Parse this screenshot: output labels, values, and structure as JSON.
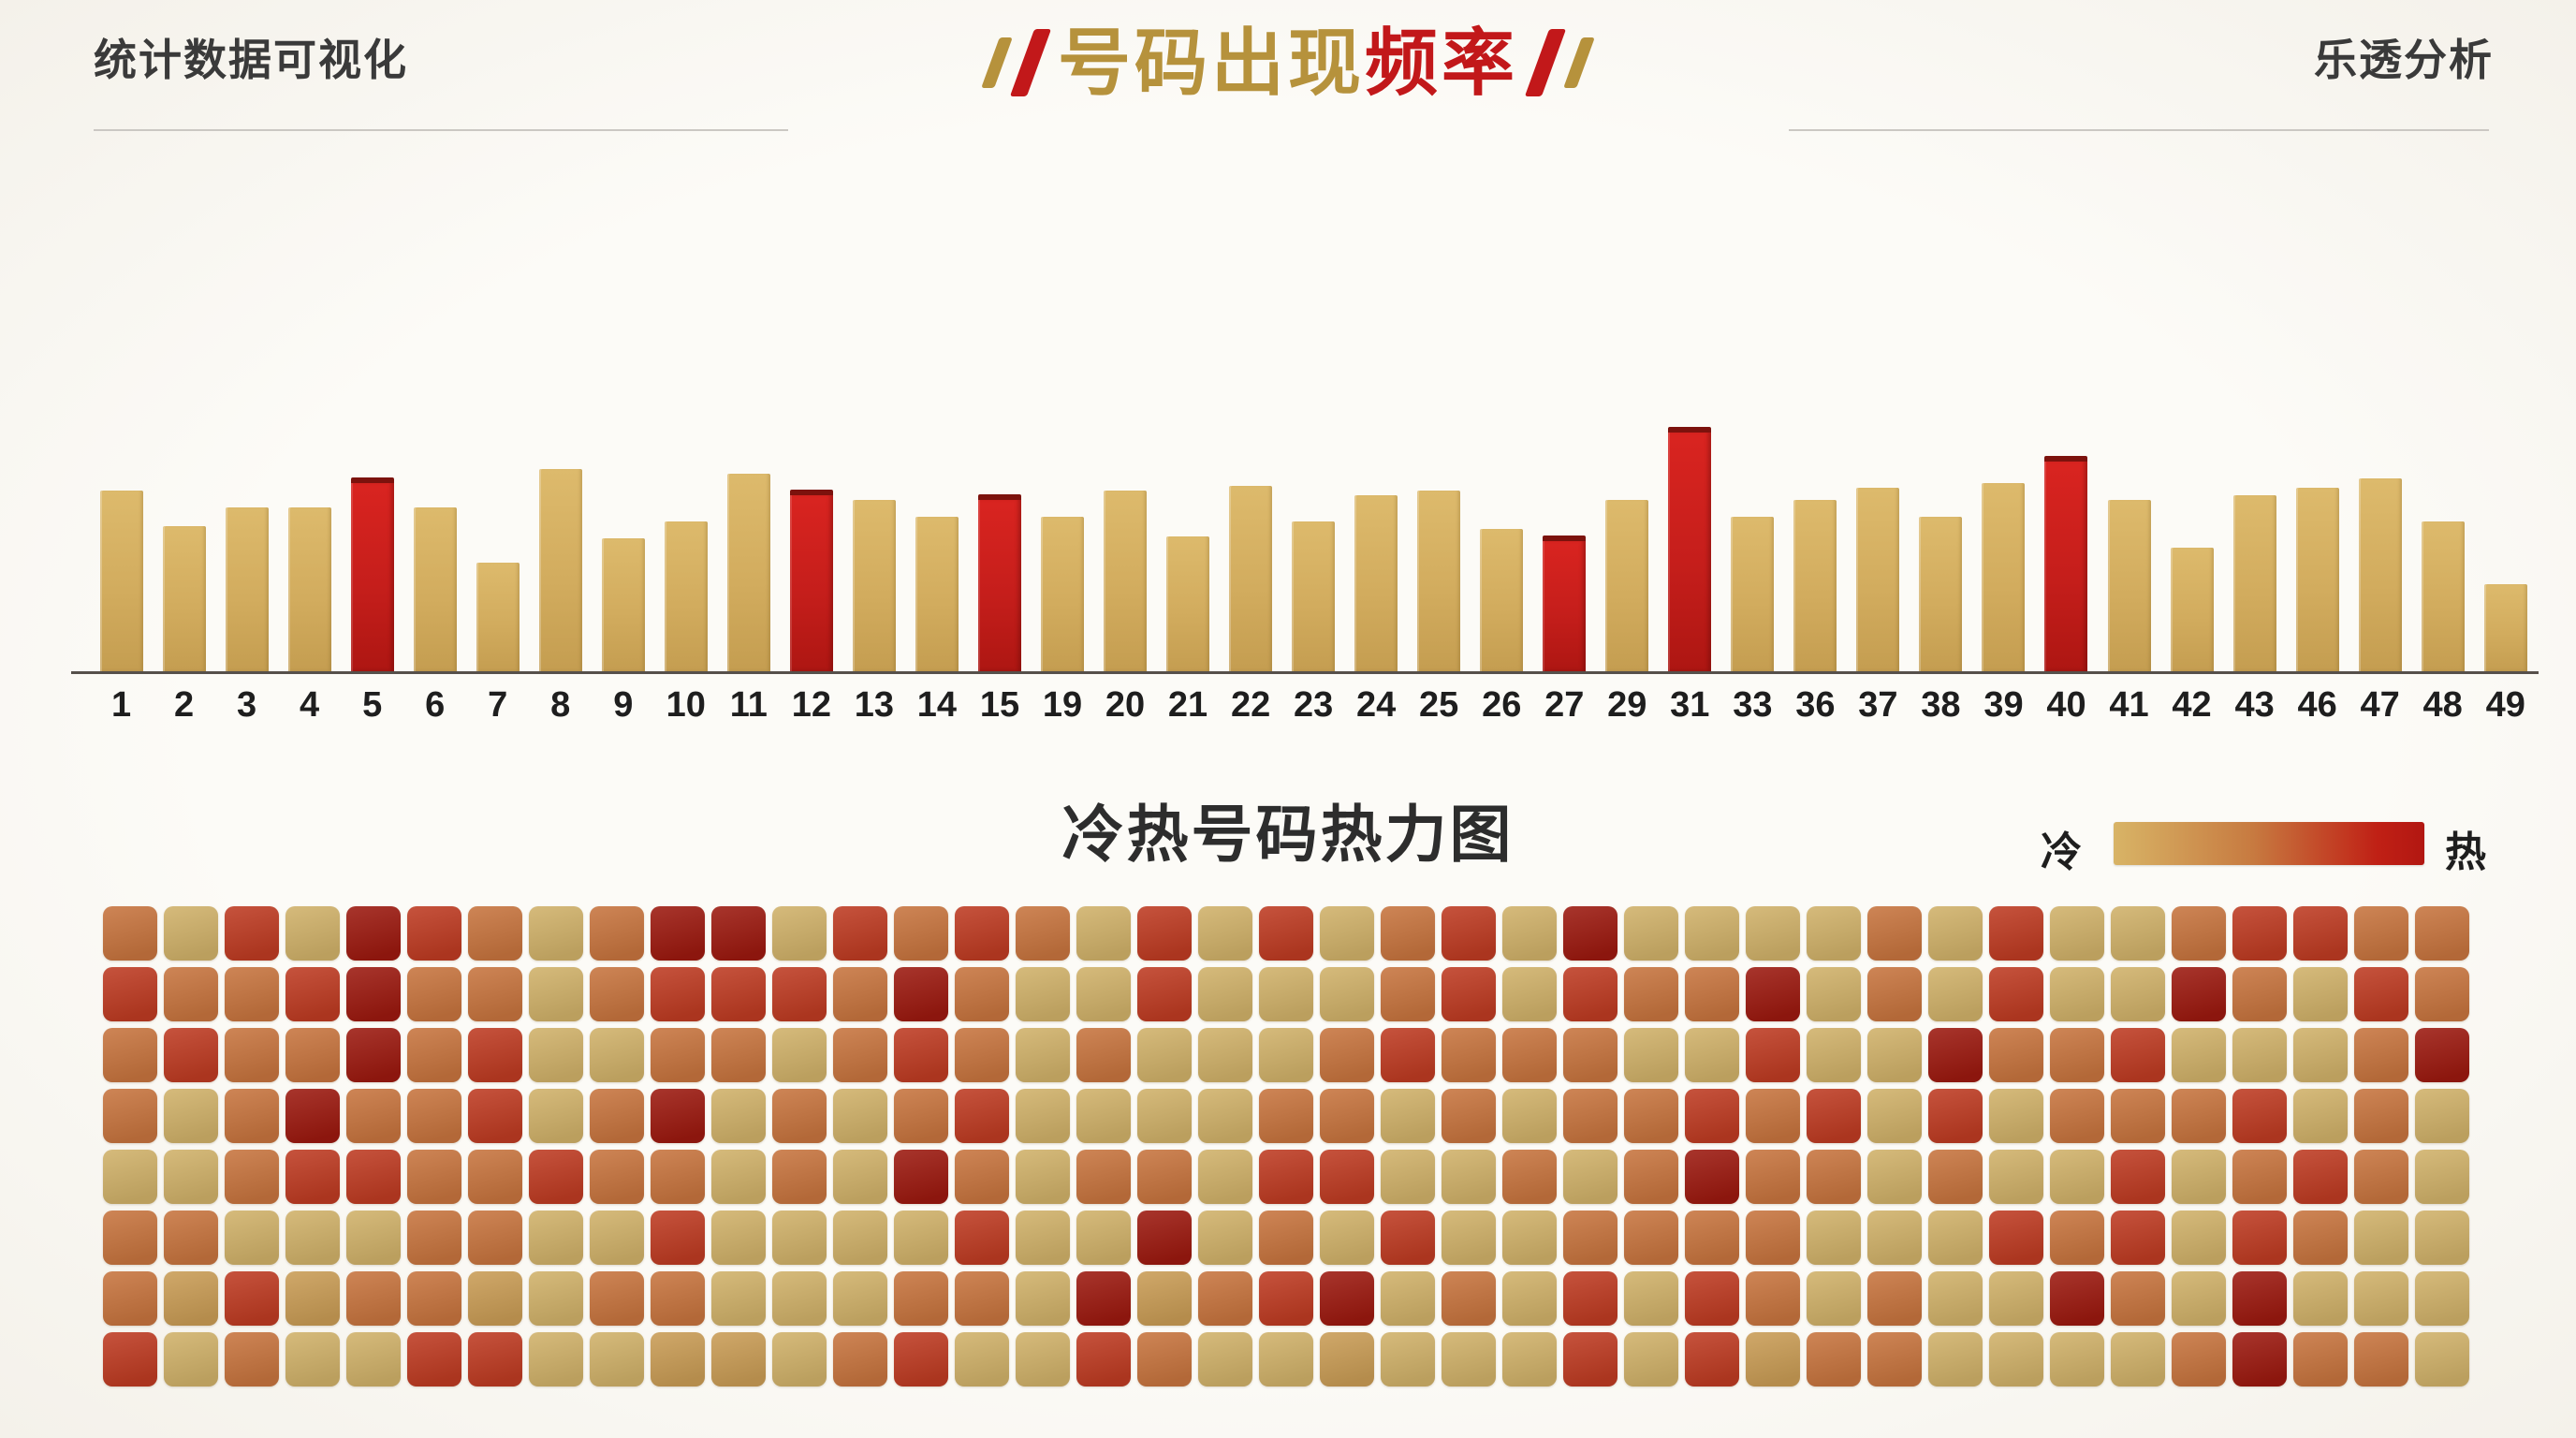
{
  "header": {
    "left_title": "统计数据可视化",
    "right_title": "乐透分析",
    "main_title": {
      "gold_text": "号码出现",
      "red_text": "频率"
    },
    "colors": {
      "gold": "#B6923C",
      "red": "#C2181A",
      "text": "#3A3A3A",
      "underline": "#CBC8C3"
    }
  },
  "chart_data": {
    "type": "bar",
    "title": "号码出现频率",
    "xlabel": "",
    "ylabel": "",
    "ylim": [
      0,
      100
    ],
    "grid": false,
    "legend_position": "none",
    "categories": [
      "1",
      "2",
      "3",
      "4",
      "5",
      "6",
      "7",
      "8",
      "9",
      "10",
      "11",
      "12",
      "13",
      "14",
      "15",
      "19",
      "20",
      "21",
      "22",
      "23",
      "24",
      "25",
      "26",
      "27",
      "29",
      "31",
      "33",
      "36",
      "37",
      "38",
      "39",
      "40",
      "41",
      "42",
      "43",
      "46",
      "47",
      "48",
      "49"
    ],
    "values": [
      76,
      61,
      69,
      69,
      79,
      69,
      46,
      85,
      56,
      63,
      83,
      74,
      72,
      65,
      72,
      65,
      76,
      57,
      78,
      63,
      74,
      76,
      60,
      55,
      72,
      100,
      65,
      72,
      77,
      65,
      79,
      88,
      72,
      52,
      74,
      77,
      81,
      63,
      37
    ],
    "hot_numbers": [
      "5",
      "12",
      "15",
      "27",
      "31",
      "40"
    ],
    "bar_color": "#D2AC5E",
    "hot_color": "#C51E1B"
  },
  "heatmap": {
    "title": "冷热号码热力图",
    "legend": {
      "cold_label": "冷",
      "hot_label": "热",
      "gradient": [
        "#D8B466",
        "#C77A40",
        "#C02015",
        "#B21712"
      ]
    },
    "level_colors": [
      "#D0B169",
      "#C99C55",
      "#C7743E",
      "#BE3B22",
      "#9C190F"
    ],
    "rows": [
      [
        2,
        0,
        3,
        0,
        4,
        3,
        2,
        0,
        2,
        4,
        4,
        0,
        3,
        2,
        3,
        2,
        0,
        3,
        0,
        3,
        0,
        2,
        3,
        0,
        4,
        0,
        0,
        0,
        0,
        2,
        0,
        3,
        0,
        0,
        2,
        3,
        3,
        2,
        2
      ],
      [
        3,
        2,
        2,
        3,
        4,
        2,
        2,
        0,
        2,
        3,
        3,
        3,
        2,
        4,
        2,
        0,
        0,
        3,
        0,
        0,
        0,
        2,
        3,
        0,
        3,
        2,
        2,
        4,
        0,
        2,
        0,
        3,
        0,
        0,
        4,
        2,
        0,
        3,
        2
      ],
      [
        2,
        3,
        2,
        2,
        4,
        2,
        3,
        0,
        0,
        2,
        2,
        0,
        2,
        3,
        2,
        0,
        2,
        0,
        0,
        0,
        2,
        3,
        2,
        2,
        2,
        0,
        0,
        3,
        0,
        0,
        4,
        2,
        2,
        3,
        0,
        0,
        0,
        2,
        4
      ],
      [
        2,
        0,
        2,
        4,
        2,
        2,
        3,
        0,
        2,
        4,
        0,
        2,
        0,
        2,
        3,
        0,
        0,
        0,
        0,
        2,
        2,
        0,
        2,
        0,
        2,
        2,
        3,
        2,
        3,
        0,
        3,
        0,
        2,
        2,
        2,
        3,
        0,
        2,
        0
      ],
      [
        0,
        0,
        2,
        3,
        3,
        2,
        2,
        3,
        2,
        2,
        0,
        2,
        0,
        4,
        2,
        0,
        2,
        2,
        0,
        3,
        3,
        0,
        0,
        2,
        0,
        2,
        4,
        2,
        2,
        0,
        2,
        0,
        0,
        3,
        0,
        2,
        3,
        2,
        0
      ],
      [
        2,
        2,
        0,
        0,
        0,
        2,
        2,
        0,
        0,
        3,
        0,
        0,
        0,
        0,
        3,
        0,
        0,
        4,
        0,
        2,
        0,
        3,
        0,
        0,
        2,
        2,
        2,
        2,
        0,
        0,
        0,
        3,
        2,
        3,
        0,
        3,
        2,
        0,
        0
      ],
      [
        2,
        1,
        3,
        1,
        2,
        2,
        1,
        0,
        2,
        2,
        0,
        0,
        0,
        2,
        2,
        0,
        4,
        1,
        2,
        3,
        4,
        0,
        2,
        0,
        3,
        0,
        3,
        2,
        0,
        2,
        0,
        0,
        4,
        2,
        0,
        4,
        0,
        0,
        0
      ],
      [
        3,
        0,
        2,
        0,
        0,
        3,
        3,
        0,
        0,
        1,
        1,
        0,
        2,
        3,
        0,
        0,
        3,
        2,
        0,
        0,
        1,
        0,
        0,
        0,
        3,
        0,
        3,
        1,
        2,
        2,
        0,
        0,
        0,
        0,
        2,
        4,
        2,
        2,
        0
      ]
    ]
  }
}
